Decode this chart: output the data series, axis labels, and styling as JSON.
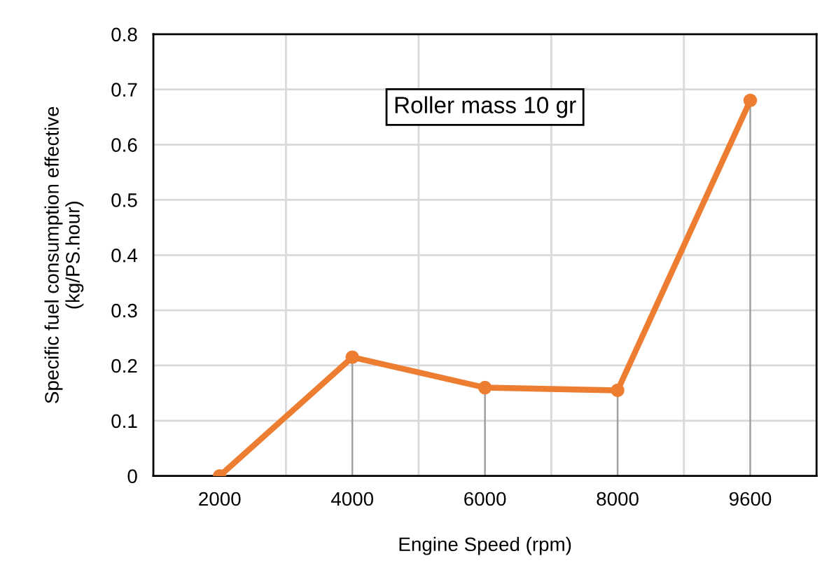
{
  "chart_data": {
    "type": "line",
    "xlabel": "Engine Speed (rpm)",
    "ylabel": "Specific fuel consumption effective\n(kg/PS.hour)",
    "categories": [
      "2000",
      "4000",
      "6000",
      "8000",
      "9600"
    ],
    "series": [
      {
        "color": "#ed7d31",
        "values": [
          0,
          0.215,
          0.16,
          0.155,
          0.68
        ],
        "errors": [
          null,
          [
            0,
            0.215
          ],
          [
            0,
            0.16
          ],
          [
            0,
            0.155
          ],
          [
            0,
            0.68
          ]
        ]
      }
    ],
    "ylim": [
      0,
      0.8
    ],
    "yticks": [
      0,
      0.1,
      0.2,
      0.3,
      0.4,
      0.5,
      0.6,
      0.7,
      0.8
    ],
    "grid": true,
    "marker": "circle",
    "line_style": "solid",
    "annotations": [
      "Roller mass 10 gr"
    ]
  }
}
